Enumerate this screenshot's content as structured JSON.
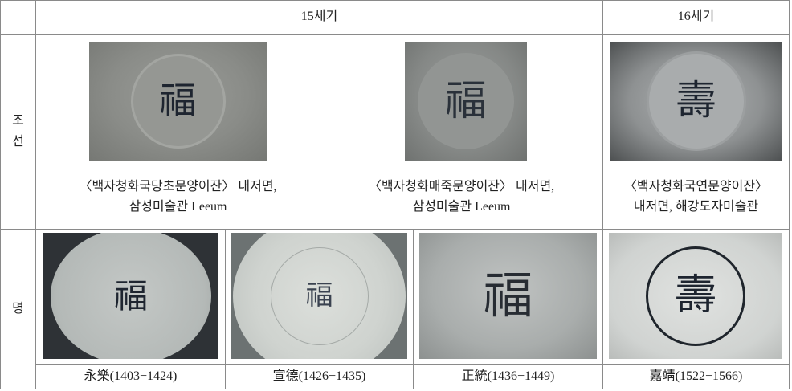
{
  "header": {
    "period_15": "15세기",
    "period_16": "16세기"
  },
  "rows": [
    {
      "label": "조선",
      "images": [
        {
          "glyph": "福"
        },
        {
          "glyph": "福"
        },
        {
          "glyph": "壽"
        }
      ],
      "captions": [
        "〈백자청화국당초문양이잔〉 내저면,\n삼성미술관 Leeum",
        "〈백자청화매죽문양이잔〉 내저면,\n삼성미술관 Leeum",
        "〈백자청화국연문양이잔〉\n내저면, 해강도자미술관"
      ]
    },
    {
      "label": "명",
      "images": [
        {
          "glyph": "福"
        },
        {
          "glyph": "福"
        },
        {
          "glyph": "福"
        },
        {
          "glyph": "壽"
        }
      ],
      "captions": [
        "永樂(1403−1424)",
        "宣德(1426−1435)",
        "正統(1436−1449)",
        "嘉靖(1522−1566)"
      ]
    }
  ]
}
